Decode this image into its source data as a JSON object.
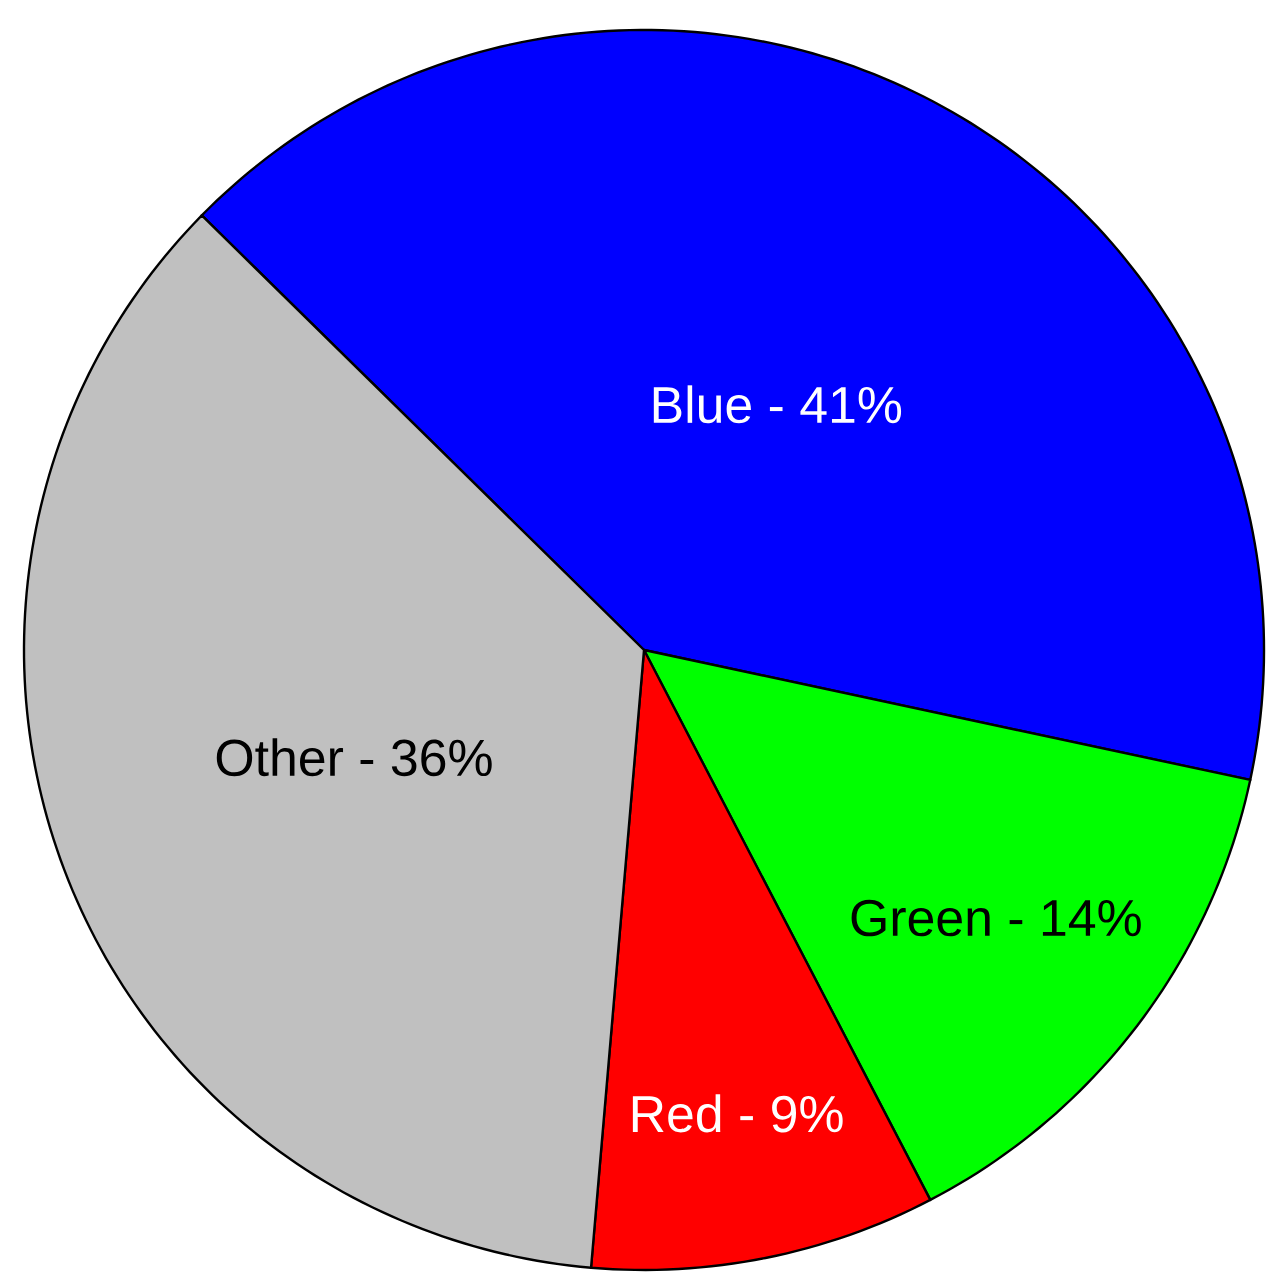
{
  "chart_data": {
    "type": "pie",
    "categories": [
      "Blue - 41%",
      "Green - 14%",
      "Red - 9%",
      "Other - 36%"
    ],
    "values": [
      41,
      14,
      9,
      36
    ],
    "colors": [
      "#0000ff",
      "#00ff00",
      "#ff0000",
      "#c0c0c0"
    ]
  }
}
